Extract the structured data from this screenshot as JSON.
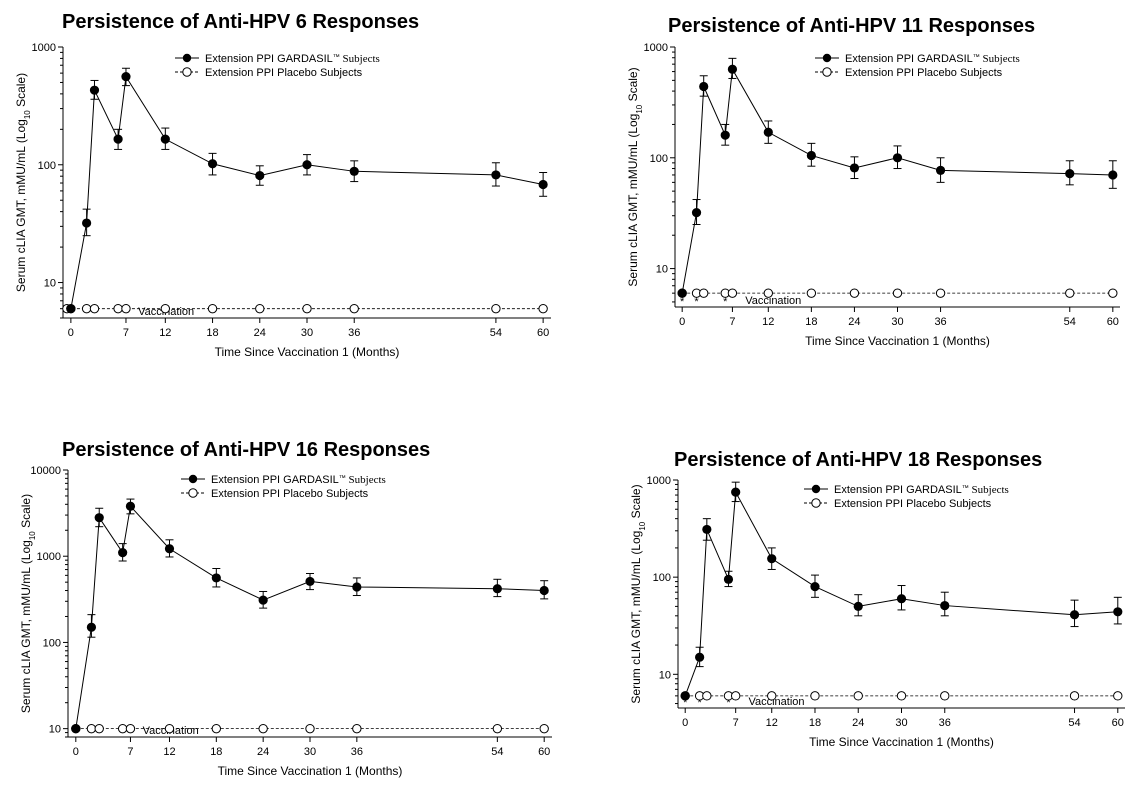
{
  "chart_data": [
    {
      "type": "line",
      "title": "Persistence of Anti-HPV 6 Responses",
      "xlabel": "Time Since Vaccination 1 (Months)",
      "ylabel": "Serum cLIA GMT, mMU/mL (Log",
      "ylabel_sub": "10",
      "ylabel_end": " Scale)",
      "yscale": "log",
      "ylim": [
        5,
        1000
      ],
      "yticks": [
        10,
        100,
        1000
      ],
      "ytick_labels": [
        "10",
        "100",
        "1000"
      ],
      "xlim": [
        -1,
        61
      ],
      "xticks": [
        0,
        7,
        12,
        18,
        24,
        30,
        36,
        54,
        60
      ],
      "xtick_labels": [
        "0",
        "7",
        "12",
        "18",
        "24",
        "30",
        "36",
        "54",
        "60"
      ],
      "vaccination_marks": [
        0,
        2,
        6
      ],
      "vaccination_label": "Vaccination",
      "legend": {
        "position": "top-center",
        "gardasil_label": "Extension PPI GARDASIL",
        "gardasil_tm": "™",
        "gardasil_suffix": " Subjects",
        "placebo_label": "Extension PPI Placebo Subjects"
      },
      "series": [
        {
          "name": "Extension PPI GARDASIL™ Subjects",
          "marker": "filled-circle",
          "style": "solid",
          "x": [
            0,
            2,
            3,
            6,
            7,
            12,
            18,
            24,
            30,
            36,
            54,
            60
          ],
          "y": [
            6,
            32,
            430,
            165,
            560,
            165,
            102,
            81,
            100,
            88,
            82,
            68
          ],
          "err_low": [
            6,
            25,
            360,
            135,
            470,
            135,
            82,
            67,
            82,
            72,
            66,
            54
          ],
          "err_high": [
            6,
            42,
            520,
            200,
            660,
            205,
            125,
            98,
            122,
            108,
            104,
            86
          ]
        },
        {
          "name": "Extension PPI Placebo Subjects",
          "marker": "open-circle",
          "style": "dashed",
          "x": [
            -0.5,
            0,
            2,
            3,
            6,
            7,
            12,
            18,
            24,
            30,
            36,
            54,
            60
          ],
          "y": [
            6,
            6,
            6,
            6,
            6,
            6,
            6,
            6,
            6,
            6,
            6,
            6,
            6
          ]
        }
      ]
    },
    {
      "type": "line",
      "title": "Persistence of Anti-HPV 11 Responses",
      "xlabel": "Time Since Vaccination 1 (Months)",
      "ylabel": "Serum cLIA GMT, mMU/mL (Log",
      "ylabel_sub": "10",
      "ylabel_end": " Scale)",
      "yscale": "log",
      "ylim": [
        4.5,
        1000
      ],
      "yticks": [
        10,
        100,
        1000
      ],
      "ytick_labels": [
        "10",
        "100",
        "1000"
      ],
      "xlim": [
        -1,
        61
      ],
      "xticks": [
        0,
        7,
        12,
        18,
        24,
        30,
        36,
        54,
        60
      ],
      "xtick_labels": [
        "0",
        "7",
        "12",
        "18",
        "24",
        "30",
        "36",
        "54",
        "60"
      ],
      "vaccination_marks": [
        0,
        2,
        6
      ],
      "vaccination_label": "Vaccination",
      "legend": {
        "position": "top-center",
        "gardasil_label": "Extension PPI GARDASIL",
        "gardasil_tm": "™",
        "gardasil_suffix": " Subjects",
        "placebo_label": "Extension PPI Placebo Subjects"
      },
      "series": [
        {
          "name": "Extension PPI GARDASIL™ Subjects",
          "marker": "filled-circle",
          "style": "solid",
          "x": [
            0,
            2,
            3,
            6,
            7,
            12,
            18,
            24,
            30,
            36,
            54,
            60
          ],
          "y": [
            6,
            32,
            440,
            160,
            630,
            170,
            105,
            81,
            100,
            77,
            72,
            70
          ],
          "err_low": [
            6,
            25,
            360,
            130,
            520,
            135,
            84,
            65,
            80,
            60,
            57,
            53
          ],
          "err_high": [
            6,
            42,
            550,
            200,
            790,
            215,
            135,
            102,
            128,
            100,
            94,
            94
          ]
        },
        {
          "name": "Extension PPI Placebo Subjects",
          "marker": "open-circle",
          "style": "dashed",
          "x": [
            0,
            2,
            3,
            6,
            7,
            12,
            18,
            24,
            30,
            36,
            54,
            60
          ],
          "y": [
            6,
            6,
            6,
            6,
            6,
            6,
            6,
            6,
            6,
            6,
            6,
            6
          ]
        }
      ]
    },
    {
      "type": "line",
      "title": "Persistence of Anti-HPV 16 Responses",
      "xlabel": "Time Since Vaccination 1 (Months)",
      "ylabel": "Serum cLIA GMT, mMU/mL (Log",
      "ylabel_sub": "10",
      "ylabel_end": " Scale)",
      "yscale": "log",
      "ylim": [
        8,
        10000
      ],
      "yticks": [
        10,
        100,
        1000,
        10000
      ],
      "ytick_labels": [
        "10",
        "100",
        "1000",
        "10000"
      ],
      "xlim": [
        -1,
        61
      ],
      "xticks": [
        0,
        7,
        12,
        18,
        24,
        30,
        36,
        54,
        60
      ],
      "xtick_labels": [
        "0",
        "7",
        "12",
        "18",
        "24",
        "30",
        "36",
        "54",
        "60"
      ],
      "vaccination_marks": [
        0,
        2,
        6
      ],
      "vaccination_label": "Vaccination",
      "legend": {
        "position": "top-center",
        "gardasil_label": "Extension PPI GARDASIL",
        "gardasil_tm": "™",
        "gardasil_suffix": " Subjects",
        "placebo_label": "Extension PPI Placebo Subjects"
      },
      "series": [
        {
          "name": "Extension PPI GARDASIL™ Subjects",
          "marker": "filled-circle",
          "style": "solid",
          "x": [
            0,
            2,
            3,
            6,
            7,
            12,
            18,
            24,
            30,
            36,
            54,
            60
          ],
          "y": [
            10,
            150,
            2800,
            1100,
            3800,
            1220,
            560,
            310,
            510,
            440,
            420,
            400
          ],
          "err_low": [
            10,
            115,
            2200,
            880,
            3100,
            980,
            440,
            250,
            410,
            350,
            340,
            320
          ],
          "err_high": [
            10,
            210,
            3600,
            1400,
            4600,
            1550,
            720,
            390,
            630,
            560,
            540,
            520
          ]
        },
        {
          "name": "Extension PPI Placebo Subjects",
          "marker": "open-circle",
          "style": "dashed",
          "x": [
            0,
            2,
            3,
            6,
            7,
            12,
            18,
            24,
            30,
            36,
            54,
            60
          ],
          "y": [
            10,
            10,
            10,
            10,
            10,
            10,
            10,
            10,
            10,
            10,
            10,
            10
          ]
        }
      ]
    },
    {
      "type": "line",
      "title": "Persistence of Anti-HPV 18 Responses",
      "xlabel": "Time Since Vaccination 1 (Months)",
      "ylabel": "Serum cLIA GMT, mMU/mL (Log",
      "ylabel_sub": "10",
      "ylabel_end": " Scale)",
      "yscale": "log",
      "ylim": [
        4.5,
        1000
      ],
      "yticks": [
        10,
        100,
        1000
      ],
      "ytick_labels": [
        "10",
        "100",
        "1000"
      ],
      "xlim": [
        -1,
        61
      ],
      "xticks": [
        0,
        7,
        12,
        18,
        24,
        30,
        36,
        54,
        60
      ],
      "xtick_labels": [
        "0",
        "7",
        "12",
        "18",
        "24",
        "30",
        "36",
        "54",
        "60"
      ],
      "vaccination_marks": [
        0,
        2,
        6
      ],
      "vaccination_label": "Vaccination",
      "legend": {
        "position": "top-center",
        "gardasil_label": "Extension PPI GARDASIL",
        "gardasil_tm": "™",
        "gardasil_suffix": " Subjects",
        "placebo_label": "Extension PPI Placebo Subjects"
      },
      "series": [
        {
          "name": "Extension PPI GARDASIL™ Subjects",
          "marker": "filled-circle",
          "style": "solid",
          "x": [
            0,
            2,
            3,
            6,
            7,
            12,
            18,
            24,
            30,
            36,
            54,
            60
          ],
          "y": [
            6,
            15,
            310,
            95,
            750,
            155,
            80,
            50,
            60,
            51,
            41,
            44
          ],
          "err_low": [
            6,
            12,
            240,
            80,
            600,
            120,
            62,
            40,
            46,
            40,
            31,
            33
          ],
          "err_high": [
            6,
            19,
            400,
            115,
            950,
            200,
            105,
            66,
            82,
            70,
            58,
            62
          ]
        },
        {
          "name": "Extension PPI Placebo Subjects",
          "marker": "open-circle",
          "style": "dashed",
          "x": [
            0,
            2,
            3,
            6,
            7,
            12,
            18,
            24,
            30,
            36,
            54,
            60
          ],
          "y": [
            6,
            6,
            6,
            6,
            6,
            6,
            6,
            6,
            6,
            6,
            6,
            6
          ]
        }
      ]
    }
  ]
}
